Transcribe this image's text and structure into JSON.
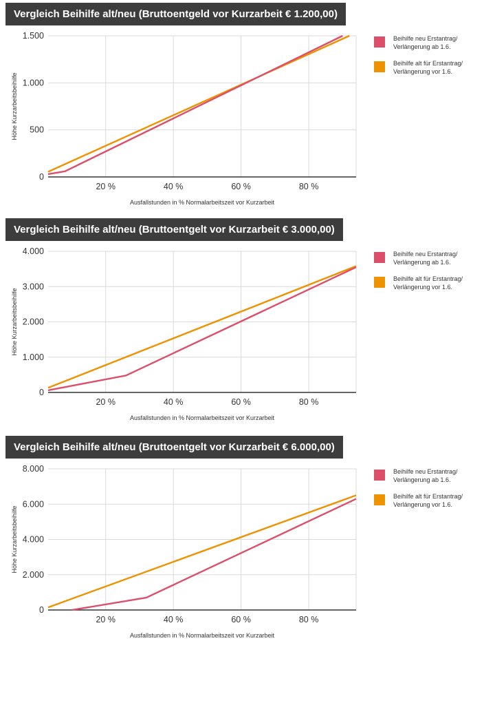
{
  "colors": {
    "neu": "#dc4f6a",
    "alt": "#ee9200",
    "grid": "#d9d9d9",
    "axis": "#333333",
    "title_bg": "#3d3d3d"
  },
  "chart_data": [
    {
      "type": "line",
      "title": "Vergleich Beihilfe alt/neu (Bruttoentgeld vor Kurzarbeit € 1.200,00)",
      "xlabel": "Ausfallstunden in % Normalarbeitszeit vor Kurzarbeit",
      "ylabel": "Höhe Kurzarbeitsbeihilfe",
      "xlim": [
        3,
        94
      ],
      "ylim": [
        0,
        1500
      ],
      "x_ticks": [
        20,
        40,
        60,
        80
      ],
      "x_tick_labels": [
        "20 %",
        "40 %",
        "60 %",
        "80 %"
      ],
      "y_ticks": [
        0,
        500,
        1000,
        1500
      ],
      "y_tick_labels": [
        "0",
        "500",
        "1.000",
        "1.500"
      ],
      "grid": true,
      "legend": "right",
      "series": [
        {
          "name": "Beihilfe neu Erstantrag/ Verlängerung ab 1.6.",
          "legend_lines": [
            "Beihilfe neu Erstantrag/",
            "Verlängerung ab 1.6."
          ],
          "color_key": "neu",
          "points": [
            [
              3,
              30
            ],
            [
              8,
              60
            ],
            [
              90,
              1500
            ]
          ]
        },
        {
          "name": "Beihilfe alt für Erstantrag/ Verlängerung vor 1.6.",
          "legend_lines": [
            "Beihilfe alt für Erstantrag/",
            "Verlängerung vor 1.6."
          ],
          "color_key": "alt",
          "points": [
            [
              3,
              55
            ],
            [
              92,
              1500
            ]
          ]
        }
      ]
    },
    {
      "type": "line",
      "title": "Vergleich Beihilfe alt/neu  (Bruttoentgelt vor Kurzarbeit € 3.000,00)",
      "xlabel": "Ausfallstunden in % Normalarbeitszeit vor Kurzarbeit",
      "ylabel": "Höhe Kurzarbeitsbeihilfe",
      "xlim": [
        3,
        94
      ],
      "ylim": [
        0,
        4000
      ],
      "x_ticks": [
        20,
        40,
        60,
        80
      ],
      "x_tick_labels": [
        "20 %",
        "40 %",
        "60 %",
        "80 %"
      ],
      "y_ticks": [
        0,
        1000,
        2000,
        3000,
        4000
      ],
      "y_tick_labels": [
        "0",
        "1.000",
        "2.000",
        "3.000",
        "4.000"
      ],
      "grid": true,
      "legend": "right",
      "series": [
        {
          "name": "Beihilfe neu Erstantrag/ Verlängerung ab 1.6.",
          "legend_lines": [
            "Beihilfe neu Erstantrag/",
            "Verlängerung ab 1.6."
          ],
          "color_key": "neu",
          "points": [
            [
              3,
              60
            ],
            [
              26,
              480
            ],
            [
              94,
              3550
            ]
          ]
        },
        {
          "name": "Beihilfe alt für Erstantrag/ Verlängerung vor 1.6.",
          "legend_lines": [
            "Beihilfe alt für Erstantrag/",
            "Verlängerung vor 1.6."
          ],
          "color_key": "alt",
          "points": [
            [
              3,
              130
            ],
            [
              94,
              3580
            ]
          ]
        }
      ]
    },
    {
      "type": "line",
      "title": "Vergleich Beihilfe alt/neu  (Bruttoentgelt vor Kurzarbeit € 6.000,00)",
      "xlabel": "Ausfallstunden in % Normalarbeitszeit vor Kurzarbeit",
      "ylabel": "Höhe Kurzarbeitsbeihilfe",
      "xlim": [
        3,
        94
      ],
      "ylim": [
        0,
        8000
      ],
      "x_ticks": [
        20,
        40,
        60,
        80
      ],
      "x_tick_labels": [
        "20 %",
        "40 %",
        "60 %",
        "80 %"
      ],
      "y_ticks": [
        0,
        2000,
        4000,
        6000,
        8000
      ],
      "y_tick_labels": [
        "0",
        "2.000",
        "4.000",
        "6.000",
        "8.000"
      ],
      "grid": true,
      "legend": "right",
      "series": [
        {
          "name": "Beihilfe neu Erstantrag/ Verlängerung ab 1.6.",
          "legend_lines": [
            "Beihilfe neu Erstantrag/",
            "Verlängerung ab 1.6."
          ],
          "color_key": "neu",
          "points": [
            [
              10,
              0
            ],
            [
              32,
              700
            ],
            [
              94,
              6300
            ]
          ]
        },
        {
          "name": "Beihilfe alt für Erstantrag/ Verlängerung vor 1.6.",
          "legend_lines": [
            "Beihilfe alt für Erstantrag/",
            "Verlängerung vor 1.6."
          ],
          "color_key": "alt",
          "points": [
            [
              3,
              150
            ],
            [
              94,
              6500
            ]
          ]
        }
      ]
    }
  ]
}
